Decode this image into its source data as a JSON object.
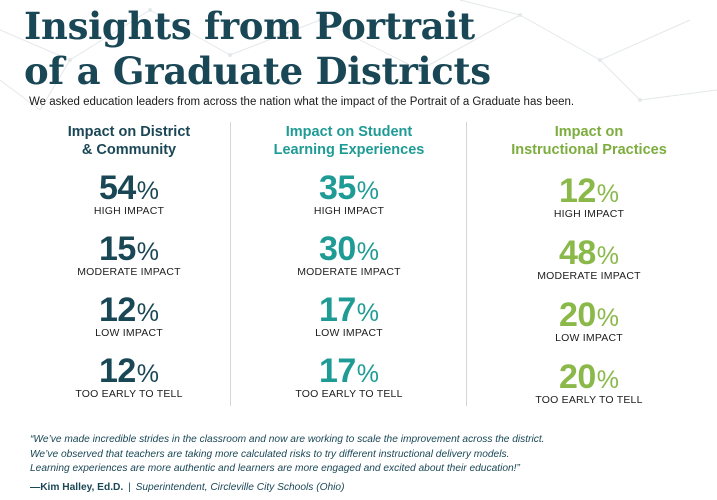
{
  "header": {
    "title_line1": "Insights from Portrait",
    "title_line2": "of a Graduate Districts",
    "subtitle": "We asked education leaders from across the nation what the impact of the Portrait of a Graduate has been."
  },
  "columns": [
    {
      "heading_line1": "Impact on District",
      "heading_line2": "& Community",
      "color": "#1a4756",
      "stats": [
        {
          "value": "54",
          "unit": "%",
          "label": "HIGH IMPACT"
        },
        {
          "value": "15",
          "unit": "%",
          "label": "MODERATE IMPACT"
        },
        {
          "value": "12",
          "unit": "%",
          "label": "LOW IMPACT"
        },
        {
          "value": "12",
          "unit": "%",
          "label": "TOO EARLY TO TELL"
        }
      ]
    },
    {
      "heading_line1": "Impact on Student",
      "heading_line2": "Learning Experiences",
      "color": "#1f9b95",
      "stats": [
        {
          "value": "35",
          "unit": "%",
          "label": "HIGH IMPACT"
        },
        {
          "value": "30",
          "unit": "%",
          "label": "MODERATE IMPACT"
        },
        {
          "value": "17",
          "unit": "%",
          "label": "LOW IMPACT"
        },
        {
          "value": "17",
          "unit": "%",
          "label": "TOO EARLY TO TELL"
        }
      ]
    },
    {
      "heading_line1": "Impact on",
      "heading_line2": "Instructional Practices",
      "color": "#7cad3e",
      "stats": [
        {
          "value": "12",
          "unit": "%",
          "label": "HIGH IMPACT"
        },
        {
          "value": "48",
          "unit": "%",
          "label": "MODERATE IMPACT"
        },
        {
          "value": "20",
          "unit": "%",
          "label": "LOW IMPACT"
        },
        {
          "value": "20",
          "unit": "%",
          "label": "TOO EARLY TO TELL"
        }
      ]
    }
  ],
  "quote": {
    "line1": "“We’ve made incredible strides in the classroom and now are working to scale the improvement across the district.",
    "line2": "We’ve observed that teachers are taking more calculated risks to try different instructional delivery models.",
    "line3": "Learning experiences are more authentic and learners are more engaged and excited about their education!”",
    "author": "—Kim Halley, Ed.D.",
    "separator": "|",
    "role": "Superintendent, Circleville City Schools (Ohio)"
  }
}
